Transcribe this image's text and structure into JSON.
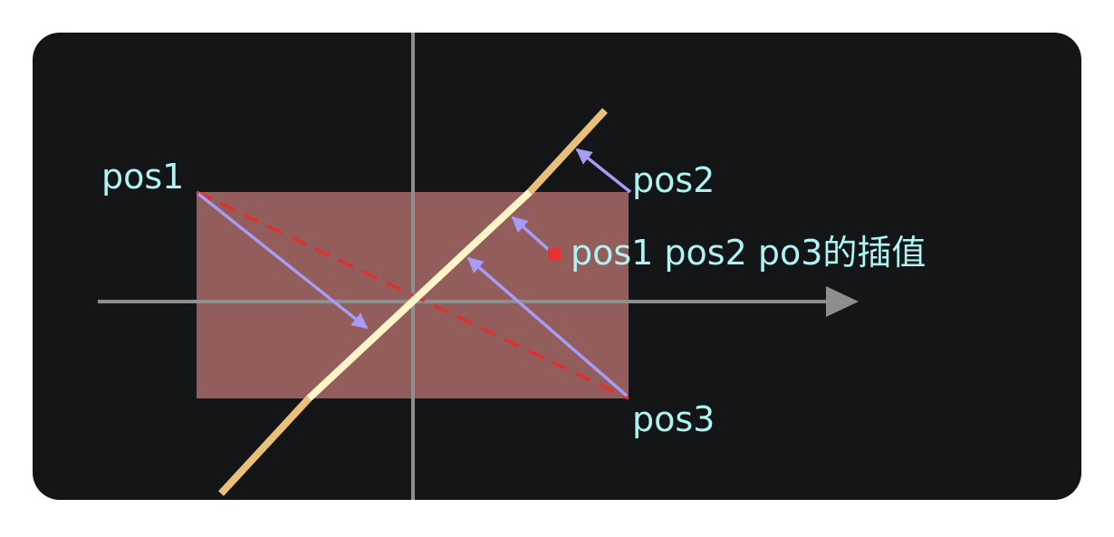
{
  "colors": {
    "page_background": "#ffffff",
    "panel_background": "#141517",
    "axis": "#8e8e8e",
    "rectangle_fill": "#c47a76",
    "diagonal_line": "#e9c07a",
    "diagonal_highlight": "#fff5c8",
    "arrow": "#a79cf5",
    "dashed_line": "#e03131",
    "interpolation_point": "#e8322d",
    "label_text": "#aef4f4"
  },
  "labels": {
    "pos1": "pos1",
    "pos2": "pos2",
    "pos3": "pos3",
    "interpolation": "pos1 pos2 po3的插值"
  }
}
